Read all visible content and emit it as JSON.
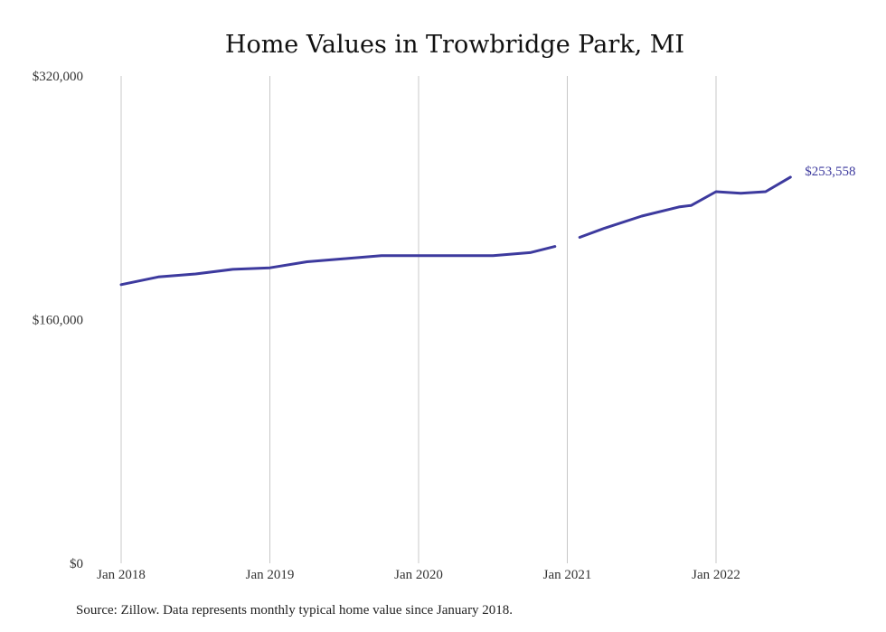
{
  "chart_data": {
    "type": "line",
    "title": "Home Values in Trowbridge Park, MI",
    "xlabel": "",
    "ylabel": "",
    "ylim": [
      0,
      320000
    ],
    "yticks": [
      {
        "value": 0,
        "label": "$0"
      },
      {
        "value": 160000,
        "label": "$160,000"
      },
      {
        "value": 320000,
        "label": "$320,000"
      }
    ],
    "xticks": [
      {
        "value": "2018-01",
        "label": "Jan 2018"
      },
      {
        "value": "2019-01",
        "label": "Jan 2019"
      },
      {
        "value": "2020-01",
        "label": "Jan 2020"
      },
      {
        "value": "2021-01",
        "label": "Jan 2021"
      },
      {
        "value": "2022-01",
        "label": "Jan 2022"
      }
    ],
    "grid": "vertical",
    "legend": "none",
    "series": [
      {
        "color": "#3d3a9e",
        "segments": [
          {
            "x": [
              "2018-01",
              "2018-04",
              "2018-07",
              "2018-10",
              "2019-01",
              "2019-04",
              "2019-07",
              "2019-10",
              "2020-01",
              "2020-04",
              "2020-07",
              "2020-10",
              "2020-12"
            ],
            "values": [
              183000,
              188000,
              190000,
              193000,
              194000,
              198000,
              200000,
              202000,
              202000,
              202000,
              202000,
              204000,
              208000
            ]
          },
          {
            "x": [
              "2021-02",
              "2021-04",
              "2021-07",
              "2021-10",
              "2021-11",
              "2022-01",
              "2022-03",
              "2022-05",
              "2022-07"
            ],
            "values": [
              214000,
              220000,
              228000,
              234000,
              235000,
              244000,
              243000,
              244000,
              253558
            ]
          }
        ],
        "end_label": "$253,558"
      }
    ]
  },
  "source_note": "Source: Zillow. Data represents monthly typical home value since January 2018."
}
